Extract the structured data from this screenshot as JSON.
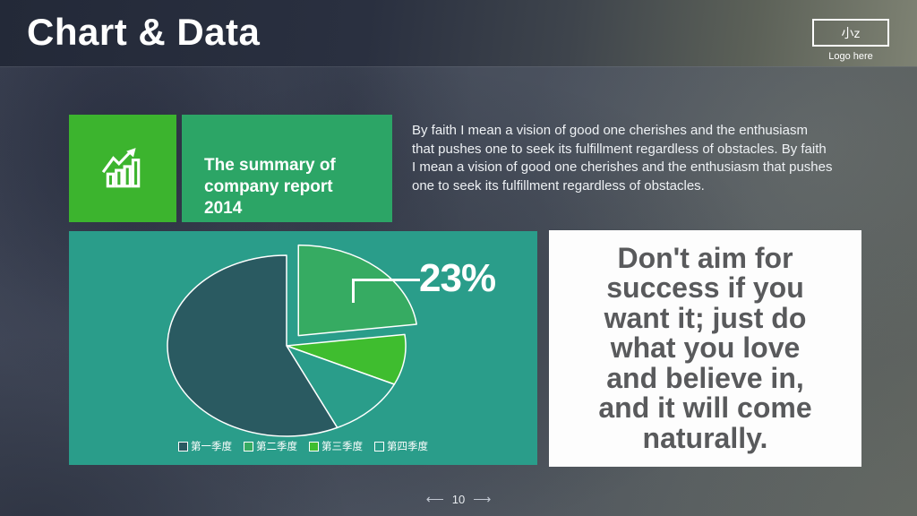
{
  "header": {
    "title": "Chart & Data"
  },
  "logo": {
    "mark": "小z",
    "caption": "Logo here"
  },
  "summary": {
    "title": [
      "The summary of",
      "company report",
      "2014"
    ]
  },
  "paragraph": {
    "text": [
      "By faith I mean a vision of good one cherishes and the enthusiasm",
      "that pushes one to seek its fulfillment regardless of obstacles. By faith",
      "I mean a vision of good one cherishes and the enthusiasm that pushes",
      "one to seek its fulfillment regardless of obstacles."
    ]
  },
  "quote": {
    "text": [
      "Don't aim for",
      "success if you",
      "want it; just do",
      "what you love",
      "and believe in,",
      "and it will come",
      "naturally."
    ]
  },
  "footer": {
    "prev": "⟵",
    "page": "10",
    "next": "⟶"
  },
  "colors": {
    "icon_tile_green": "#3cb42e",
    "title_tile_green": "#2ca566",
    "panel_teal": "#2a9d8a",
    "quote_text": "#595a5c"
  },
  "chart_data": {
    "type": "pie",
    "title": "",
    "categories": [
      "第一季度",
      "第二季度",
      "第三季度",
      "第四季度"
    ],
    "slices": [
      {
        "label": "第一季度",
        "value": 57,
        "color": "#2a5a61",
        "exploded": false
      },
      {
        "label": "第二季度",
        "value": 23,
        "color": "#36ab62",
        "exploded": true
      },
      {
        "label": "第三季度",
        "value": 9,
        "color": "#3fbd2f",
        "exploded": false
      },
      {
        "label": "第四季度",
        "value": 11,
        "color": "#2a9d8a",
        "exploded": false
      }
    ],
    "draw_order": [
      1,
      2,
      3,
      0
    ],
    "start_angle_deg": -90,
    "direction": "clockwise",
    "stroke_color": "#ffffff",
    "legend_position": "bottom",
    "callout": {
      "text": "23%",
      "slice_label": "第二季度"
    }
  }
}
